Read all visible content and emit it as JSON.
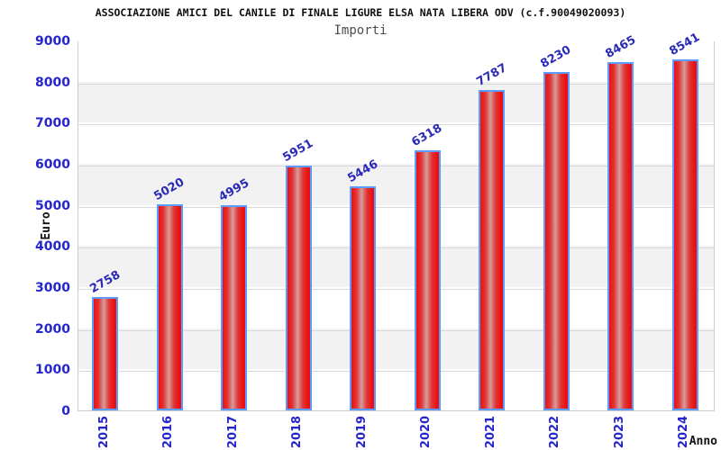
{
  "header": {
    "title": "ASSOCIAZIONE AMICI DEL CANILE DI FINALE LIGURE ELSA NATA LIBERA ODV (c.f.90049020093)",
    "subtitle": "Importi"
  },
  "chart_data": {
    "type": "bar",
    "title": "ASSOCIAZIONE AMICI DEL CANILE DI FINALE LIGURE ELSA NATA LIBERA ODV (c.f.90049020093)",
    "subtitle": "Importi",
    "categories": [
      "2015",
      "2016",
      "2017",
      "2018",
      "2019",
      "2020",
      "2021",
      "2022",
      "2023",
      "2024"
    ],
    "values": [
      2758,
      5020,
      4995,
      5951,
      5446,
      6318,
      7787,
      8230,
      8465,
      8541
    ],
    "xlabel": "Anno",
    "ylabel": "Euro",
    "ylim": [
      0,
      9000
    ],
    "ytick_step": 1000,
    "yticks": [
      0,
      1000,
      2000,
      3000,
      4000,
      5000,
      6000,
      7000,
      8000,
      9000
    ],
    "grid": true,
    "legend": null,
    "colors": {
      "bar_fill_edge": "#ea1010",
      "bar_fill_center": "#d49c9c",
      "bar_border": "#5a9cff",
      "tick_text": "#2525cd",
      "value_label_text": "#2a2ab8",
      "band_alt": "#f2f2f2",
      "gridline": "#d9d9d9",
      "plot_border": "#cccccc",
      "title_text": "#111111",
      "subtitle_text": "#4d4d4d"
    }
  }
}
